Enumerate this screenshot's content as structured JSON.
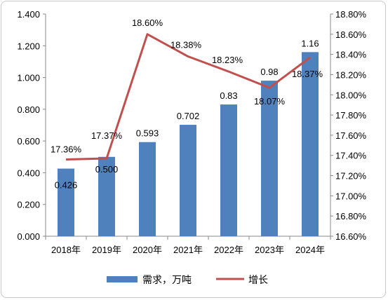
{
  "chart_data": {
    "type": "bar+line",
    "categories": [
      "2018年",
      "2019年",
      "2020年",
      "2021年",
      "2022年",
      "2023年",
      "2024年"
    ],
    "series": [
      {
        "name": "需求，万吨",
        "type": "bar",
        "axis": "left",
        "values": [
          0.426,
          0.5,
          0.593,
          0.702,
          0.83,
          0.98,
          1.16
        ],
        "labels": [
          "0.426",
          "0.500",
          "0.593",
          "0.702",
          "0.83",
          "0.98",
          "1.16"
        ],
        "color": "#4f81bd"
      },
      {
        "name": "增长",
        "type": "line",
        "axis": "right",
        "values": [
          17.36,
          17.37,
          18.6,
          18.38,
          18.23,
          18.07,
          18.37
        ],
        "labels": [
          "17.36%",
          "17.37%",
          "18.60%",
          "18.38%",
          "18.23%",
          "18.07%",
          "18.37%"
        ],
        "color": "#c0504d"
      }
    ],
    "left_axis": {
      "min": 0,
      "max": 1.4,
      "step": 0.2,
      "ticks": [
        "0.000",
        "0.200",
        "0.400",
        "0.600",
        "0.800",
        "1.000",
        "1.200",
        "1.400"
      ]
    },
    "right_axis": {
      "min": 16.6,
      "max": 18.8,
      "step": 0.2,
      "ticks": [
        "16.60%",
        "16.80%",
        "17.00%",
        "17.20%",
        "17.40%",
        "17.60%",
        "17.80%",
        "18.00%",
        "18.20%",
        "18.40%",
        "18.60%",
        "18.80%"
      ]
    },
    "grid": false,
    "legend": "bottom"
  }
}
